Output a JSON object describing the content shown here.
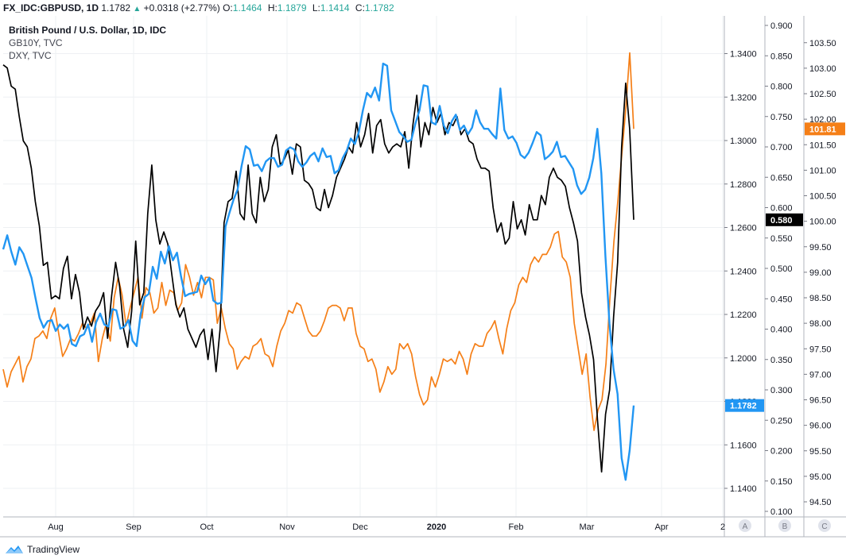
{
  "header": {
    "symbol": "FX_IDC:GBPUSD, 1D",
    "last": "1.1782",
    "change": "+0.0318 (+2.77%)",
    "o_label": "O:",
    "o": "1.1464",
    "h_label": "H:",
    "h": "1.1879",
    "l_label": "L:",
    "l": "1.1414",
    "c_label": "C:",
    "c": "1.1782"
  },
  "legend": {
    "line1": "British Pound / U.S. Dollar, 1D, IDC",
    "line2": "GB10Y, TVC",
    "line3": "DXY, TVC"
  },
  "brand": "TradingView",
  "axis_buttons": [
    "A",
    "B",
    "C"
  ],
  "colors": {
    "gbpusd": "#2196f3",
    "gb10y": "#000000",
    "dxy": "#f57f17",
    "grid": "#eef0f3",
    "axis": "#b2b5be"
  },
  "chart_data": {
    "type": "line",
    "x_ticks": [
      "Aug",
      "Sep",
      "Oct",
      "Nov",
      "Dec",
      "2020",
      "Feb",
      "Mar",
      "Apr",
      "2"
    ],
    "axes": {
      "A": {
        "series": "British Pound / U.S. Dollar",
        "ticks": [
          "1.1400",
          "1.1600",
          "1.1800",
          "1.2000",
          "1.2200",
          "1.2400",
          "1.2600",
          "1.2800",
          "1.3000",
          "1.3200",
          "1.3400"
        ],
        "last_label": "1.1782"
      },
      "B": {
        "series": "GB10Y",
        "ticks": [
          "0.100",
          "0.150",
          "0.200",
          "0.250",
          "0.300",
          "0.350",
          "0.400",
          "0.450",
          "0.500",
          "0.550",
          "0.600",
          "0.650",
          "0.700",
          "0.750",
          "0.800",
          "0.850",
          "0.900"
        ],
        "last_label": "0.580"
      },
      "C": {
        "series": "DXY",
        "ticks": [
          "94.50",
          "95.00",
          "95.50",
          "96.00",
          "96.50",
          "97.00",
          "97.50",
          "98.00",
          "98.50",
          "99.00",
          "99.50",
          "100.00",
          "100.50",
          "101.00",
          "101.50",
          "102.00",
          "102.50",
          "103.00",
          "103.50"
        ],
        "last_label": "101.81"
      }
    },
    "series": [
      {
        "name": "British Pound / U.S. Dollar",
        "axis": "A",
        "color": "#2196f3",
        "values": [
          1.25,
          1.2565,
          1.249,
          1.243,
          1.251,
          1.248,
          1.2425,
          1.237,
          1.2275,
          1.2185,
          1.214,
          1.217,
          1.2175,
          1.2125,
          1.2155,
          1.2135,
          1.2155,
          1.2065,
          1.2055,
          1.21,
          1.211,
          1.2155,
          1.2075,
          1.2165,
          1.2205,
          1.2155,
          1.2145,
          1.2225,
          1.222,
          1.2135,
          1.2145,
          1.2175,
          1.208,
          1.2055,
          1.22,
          1.228,
          1.2295,
          1.242,
          1.2365,
          1.249,
          1.2435,
          1.2515,
          1.245,
          1.2485,
          1.2375,
          1.2285,
          1.2295,
          1.23,
          1.2305,
          1.238,
          1.234,
          1.237,
          1.2265,
          1.225,
          1.2255,
          1.2605,
          1.267,
          1.273,
          1.2775,
          1.2885,
          1.2975,
          1.296,
          1.2885,
          1.289,
          1.286,
          1.2905,
          1.292,
          1.292,
          1.288,
          1.289,
          1.2955,
          1.297,
          1.296,
          1.2905,
          1.288,
          1.29,
          1.293,
          1.2945,
          1.2905,
          1.2965,
          1.2925,
          1.293,
          1.285,
          1.2865,
          1.292,
          1.2955,
          1.301,
          1.2985,
          1.304,
          1.314,
          1.322,
          1.32,
          1.3245,
          1.3185,
          1.3355,
          1.3345,
          1.314,
          1.309,
          1.304,
          1.302,
          1.2995,
          1.3005,
          1.308,
          1.314,
          1.3255,
          1.325,
          1.3085,
          1.3075,
          1.316,
          1.307,
          1.3035,
          1.309,
          1.312,
          1.305,
          1.307,
          1.303,
          1.306,
          1.314,
          1.3085,
          1.3055,
          1.3055,
          1.303,
          1.301,
          1.324,
          1.305,
          1.301,
          1.302,
          1.299,
          1.2935,
          1.292,
          1.2945,
          1.299,
          1.304,
          1.3025,
          1.2915,
          1.293,
          1.295,
          1.2995,
          1.2925,
          1.293,
          1.29,
          1.287,
          1.2795,
          1.2755,
          1.2775,
          1.283,
          1.292,
          1.3055,
          1.285,
          1.247,
          1.216,
          1.195,
          1.1835,
          1.154,
          1.144,
          1.1575,
          1.1782
        ]
      },
      {
        "name": "GB10Y",
        "axis": "B",
        "color": "#000000",
        "values": [
          0.835,
          0.83,
          0.8,
          0.795,
          0.75,
          0.71,
          0.7,
          0.665,
          0.61,
          0.57,
          0.505,
          0.51,
          0.45,
          0.455,
          0.45,
          0.5,
          0.52,
          0.45,
          0.49,
          0.46,
          0.4,
          0.42,
          0.405,
          0.43,
          0.44,
          0.46,
          0.385,
          0.455,
          0.51,
          0.47,
          0.4,
          0.37,
          0.43,
          0.545,
          0.44,
          0.46,
          0.59,
          0.67,
          0.58,
          0.54,
          0.56,
          0.54,
          0.49,
          0.44,
          0.42,
          0.435,
          0.4,
          0.385,
          0.37,
          0.39,
          0.4,
          0.35,
          0.4,
          0.33,
          0.4,
          0.575,
          0.61,
          0.615,
          0.66,
          0.59,
          0.58,
          0.67,
          0.59,
          0.575,
          0.65,
          0.61,
          0.63,
          0.7,
          0.72,
          0.67,
          0.68,
          0.695,
          0.655,
          0.705,
          0.7,
          0.645,
          0.64,
          0.63,
          0.6,
          0.595,
          0.63,
          0.6,
          0.62,
          0.65,
          0.665,
          0.68,
          0.7,
          0.69,
          0.74,
          0.7,
          0.72,
          0.755,
          0.69,
          0.735,
          0.745,
          0.705,
          0.69,
          0.7,
          0.705,
          0.7,
          0.725,
          0.665,
          0.735,
          0.785,
          0.7,
          0.74,
          0.72,
          0.765,
          0.74,
          0.755,
          0.72,
          0.74,
          0.735,
          0.75,
          0.72,
          0.73,
          0.71,
          0.705,
          0.68,
          0.665,
          0.665,
          0.66,
          0.6,
          0.56,
          0.575,
          0.54,
          0.55,
          0.61,
          0.565,
          0.58,
          0.555,
          0.605,
          0.58,
          0.58,
          0.62,
          0.605,
          0.65,
          0.665,
          0.65,
          0.645,
          0.635,
          0.6,
          0.575,
          0.545,
          0.46,
          0.42,
          0.39,
          0.35,
          0.25,
          0.165,
          0.26,
          0.3,
          0.42,
          0.51,
          0.7,
          0.805,
          0.73,
          0.58
        ]
      },
      {
        "name": "DXY",
        "axis": "C",
        "color": "#f57f17",
        "values": [
          97.1,
          96.75,
          97.05,
          97.2,
          97.35,
          96.85,
          97.15,
          97.3,
          97.7,
          97.75,
          97.85,
          97.7,
          98.1,
          98.3,
          97.8,
          97.35,
          97.5,
          97.7,
          97.65,
          97.8,
          98.0,
          97.9,
          98.0,
          98.2,
          97.25,
          97.7,
          98.0,
          97.65,
          98.5,
          98.9,
          98.55,
          97.95,
          98.3,
          98.6,
          98.9,
          98.1,
          98.7,
          98.6,
          98.2,
          98.3,
          98.8,
          98.35,
          98.65,
          98.6,
          98.25,
          98.4,
          99.15,
          98.9,
          98.55,
          98.8,
          98.5,
          98.9,
          98.9,
          98.85,
          98.0,
          98.3,
          97.9,
          97.6,
          97.5,
          97.1,
          97.25,
          97.35,
          97.3,
          97.55,
          97.6,
          97.7,
          97.4,
          97.35,
          97.15,
          97.55,
          97.85,
          98.0,
          98.25,
          98.2,
          98.4,
          98.35,
          98.1,
          97.85,
          97.75,
          97.75,
          97.85,
          98.05,
          98.3,
          98.35,
          98.35,
          98.3,
          98.05,
          98.3,
          98.3,
          97.8,
          97.55,
          97.5,
          97.25,
          97.3,
          97.1,
          96.65,
          96.85,
          97.15,
          97.0,
          97.1,
          97.6,
          97.5,
          97.6,
          97.4,
          96.95,
          96.6,
          96.4,
          96.5,
          96.95,
          96.75,
          97.0,
          97.3,
          97.25,
          97.3,
          97.2,
          97.45,
          97.3,
          97.0,
          97.4,
          97.6,
          97.55,
          97.55,
          97.8,
          97.9,
          98.05,
          97.7,
          97.4,
          97.9,
          98.25,
          98.4,
          98.75,
          98.9,
          98.8,
          99.15,
          99.3,
          99.2,
          99.35,
          99.35,
          99.5,
          99.75,
          99.8,
          99.3,
          99.2,
          98.9,
          98.0,
          97.5,
          97.0,
          97.4,
          96.55,
          95.9,
          96.3,
          96.5,
          97.2,
          98.5,
          99.6,
          100.4,
          101.3,
          102.2,
          103.3,
          101.81
        ]
      }
    ]
  }
}
